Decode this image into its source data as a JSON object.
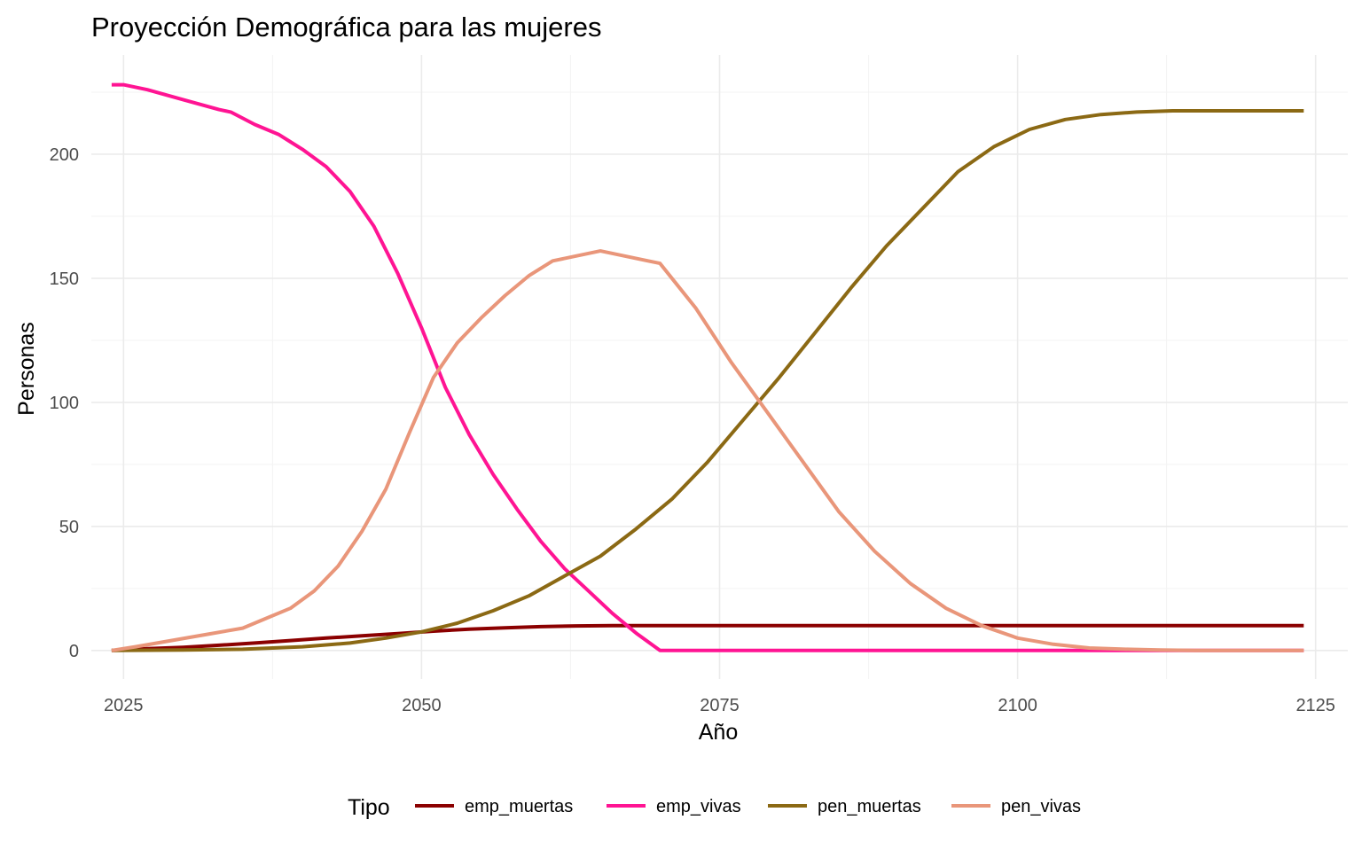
{
  "chart_data": {
    "type": "line",
    "title": "Proyección Demográfica para las mujeres",
    "xlabel": "Año",
    "ylabel": "Personas",
    "xlim": [
      2022.3,
      2127.7
    ],
    "ylim": [
      -11.5,
      240
    ],
    "x_ticks": [
      2025,
      2050,
      2075,
      2100,
      2125
    ],
    "y_ticks": [
      0,
      50,
      100,
      150,
      200
    ],
    "x_tick_labels": [
      "2025",
      "2050",
      "2075",
      "2100",
      "2125"
    ],
    "y_tick_labels": [
      "0",
      "50",
      "100",
      "150",
      "200"
    ],
    "grid": true,
    "legend": {
      "title": "Tipo",
      "position": "bottom"
    },
    "series": [
      {
        "name": "emp_muertas",
        "color": "#8B0000",
        "x": [
          2024,
          2027,
          2030,
          2033,
          2036,
          2039,
          2042,
          2045,
          2048,
          2051,
          2054,
          2057,
          2060,
          2063,
          2066,
          2069,
          2072,
          2080,
          2090,
          2100,
          2110,
          2124
        ],
        "y": [
          0,
          0.7,
          1.3,
          2.1,
          3.0,
          4.0,
          5.0,
          5.9,
          6.8,
          7.8,
          8.6,
          9.1,
          9.6,
          9.9,
          10.0,
          10.0,
          10.0,
          10.0,
          10.0,
          10.0,
          10.0,
          10.0
        ]
      },
      {
        "name": "emp_vivas",
        "color": "#FF1493",
        "x": [
          2024,
          2025,
          2027,
          2030,
          2033,
          2034,
          2036,
          2038,
          2039,
          2040,
          2042,
          2044,
          2046,
          2048,
          2050,
          2052,
          2054,
          2056,
          2058,
          2060,
          2062,
          2064,
          2066,
          2068,
          2070,
          2080,
          2100,
          2124
        ],
        "y": [
          228,
          228,
          226,
          222,
          218,
          217,
          212,
          208,
          205,
          202,
          195,
          185,
          171,
          152,
          130,
          106,
          87,
          71,
          57,
          44,
          33,
          24,
          15,
          7,
          0,
          0,
          0,
          0
        ]
      },
      {
        "name": "pen_muertas",
        "color": "#8B6914",
        "x": [
          2024,
          2030,
          2035,
          2040,
          2044,
          2047,
          2050,
          2053,
          2056,
          2059,
          2062,
          2065,
          2068,
          2071,
          2074,
          2077,
          2080,
          2083,
          2086,
          2089,
          2092,
          2095,
          2098,
          2101,
          2104,
          2107,
          2110,
          2113,
          2124
        ],
        "y": [
          0,
          0.2,
          0.5,
          1.5,
          3,
          5,
          7.5,
          11,
          16,
          22,
          30,
          38,
          49,
          61,
          76,
          93,
          110,
          128,
          146,
          163,
          178,
          193,
          203,
          210,
          214,
          216,
          217,
          217.5,
          217.5
        ]
      },
      {
        "name": "pen_vivas",
        "color": "#E9967A",
        "x": [
          2024,
          2026,
          2029,
          2032,
          2035,
          2037,
          2039,
          2041,
          2043,
          2045,
          2047,
          2049,
          2051,
          2053,
          2055,
          2057,
          2059,
          2061,
          2063,
          2065,
          2067,
          2069,
          2070,
          2073,
          2076,
          2079,
          2082,
          2085,
          2088,
          2091,
          2094,
          2097,
          2100,
          2103,
          2106,
          2109,
          2112,
          2115,
          2124
        ],
        "y": [
          0,
          1.5,
          4,
          6.5,
          9,
          13,
          17,
          24,
          34,
          48,
          65,
          88,
          110,
          124,
          134,
          143,
          151,
          157,
          159,
          161,
          159,
          157,
          156,
          138,
          116,
          96,
          76,
          56,
          40,
          27,
          17,
          10,
          5,
          2.5,
          1,
          0.5,
          0.2,
          0,
          0
        ]
      }
    ]
  }
}
